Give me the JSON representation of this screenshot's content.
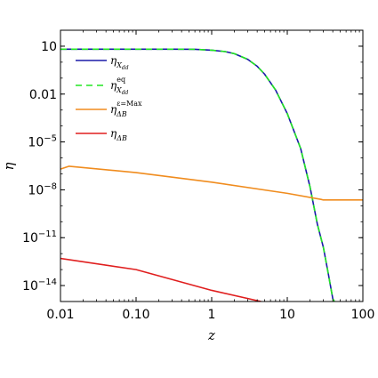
{
  "chart_data": {
    "type": "line",
    "xscale": "log",
    "yscale": "log",
    "xlim": [
      0.01,
      100
    ],
    "ylim": [
      1e-15,
      100
    ],
    "xlabel": "z",
    "ylabel": "η",
    "grid": false,
    "legend_position": "top-left",
    "x_ticks": [
      {
        "value": 0.01,
        "label": "0.01"
      },
      {
        "value": 0.1,
        "label": "0.10"
      },
      {
        "value": 1,
        "label": "1"
      },
      {
        "value": 10,
        "label": "10"
      },
      {
        "value": 100,
        "label": "100"
      }
    ],
    "y_ticks": [
      {
        "value": 10,
        "base": "10",
        "exp": ""
      },
      {
        "value": 0.01,
        "base": "0.01",
        "exp": ""
      },
      {
        "value": 1e-05,
        "base": "10",
        "exp": "−5"
      },
      {
        "value": 1e-08,
        "base": "10",
        "exp": "−8"
      },
      {
        "value": 1e-11,
        "base": "10",
        "exp": "−11"
      },
      {
        "value": 1e-14,
        "base": "10",
        "exp": "−14"
      }
    ],
    "series": [
      {
        "name": "η_{X_dd}",
        "legend": {
          "main": "η",
          "sub": "X",
          "subsub": "dd",
          "sup": ""
        },
        "color": "#1a1aa8",
        "dash": "",
        "x": [
          0.01,
          0.1,
          0.3,
          0.6,
          1.0,
          1.5,
          2.0,
          3.0,
          4.0,
          5.0,
          7.0,
          10,
          15,
          20,
          25,
          30,
          35,
          40,
          42
        ],
        "y": [
          6.5,
          6.5,
          6.5,
          6.4,
          5.6,
          4.6,
          3.4,
          1.5,
          0.55,
          0.18,
          0.018,
          0.0006,
          4e-06,
          1.5e-08,
          7e-11,
          2.5e-12,
          5e-14,
          1.5e-15,
          1e-15
        ]
      },
      {
        "name": "η^{eq}_{X_dd}",
        "legend": {
          "main": "η",
          "sub": "X",
          "subsub": "dd",
          "sup": "eq"
        },
        "color": "#22e622",
        "dash": "7,5",
        "x": [
          0.01,
          0.1,
          0.3,
          0.6,
          1.0,
          1.5,
          2.0,
          3.0,
          4.0,
          5.0,
          7.0,
          10,
          15,
          20,
          25,
          30,
          35,
          40,
          42
        ],
        "y": [
          6.5,
          6.5,
          6.5,
          6.4,
          5.6,
          4.6,
          3.4,
          1.5,
          0.55,
          0.18,
          0.018,
          0.0006,
          4e-06,
          1.5e-08,
          7e-11,
          2.5e-12,
          5e-14,
          1.5e-15,
          1e-15
        ]
      },
      {
        "name": "η^{ε=Max}_{ΔB}",
        "legend": {
          "main": "η",
          "sub": "ΔB",
          "subsub": "",
          "sup": "ε=Max"
        },
        "color": "#f08c1e",
        "dash": "",
        "x": [
          0.01,
          0.013,
          0.1,
          1,
          10,
          28,
          30,
          100
        ],
        "y": [
          2e-07,
          3e-07,
          1.2e-07,
          3e-08,
          6e-09,
          2.5e-09,
          2.3e-09,
          2.3e-09
        ]
      },
      {
        "name": "η_{ΔB}",
        "legend": {
          "main": "η",
          "sub": "ΔB",
          "subsub": "",
          "sup": ""
        },
        "color": "#e01e1e",
        "dash": "",
        "x": [
          0.01,
          0.1,
          1,
          4.5
        ],
        "y": [
          5e-13,
          1e-13,
          5e-15,
          1e-15
        ]
      }
    ]
  }
}
